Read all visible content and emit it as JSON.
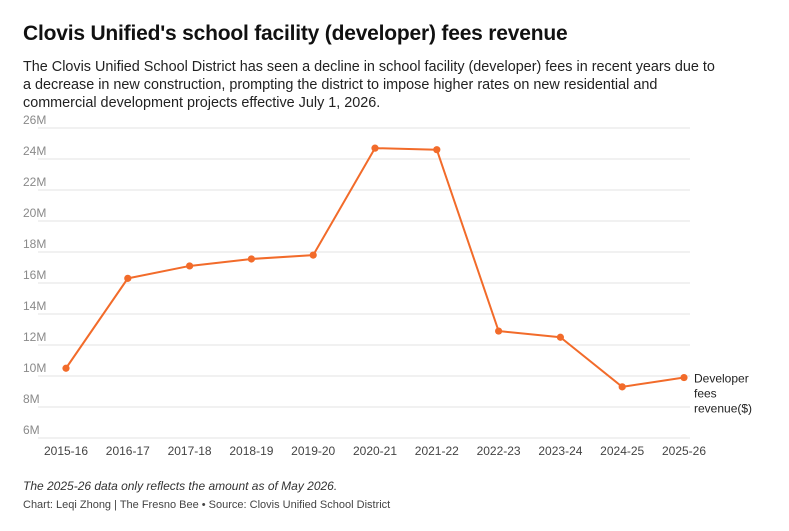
{
  "chart_data": {
    "type": "line",
    "title": "Clovis Unified's school facility (developer) fees revenue",
    "subtitle": "The Clovis Unified School District has seen a decline in school facility (developer) fees in recent years due to a decrease in new construction, prompting the district to impose higher rates on new residential and commercial development projects effective July 1, 2026.",
    "categories": [
      "2015-16",
      "2016-17",
      "2017-18",
      "2018-19",
      "2019-20",
      "2020-21",
      "2021-22",
      "2022-23",
      "2023-24",
      "2024-25",
      "2025-26"
    ],
    "series": [
      {
        "name": "Developer fees revenue($)",
        "values": [
          10500000,
          16300000,
          17100000,
          17550000,
          17800000,
          24700000,
          24600000,
          12900000,
          12500000,
          9300000,
          9900000
        ]
      }
    ],
    "yticks": [
      {
        "value": 6000000,
        "label": "6M"
      },
      {
        "value": 8000000,
        "label": "8M"
      },
      {
        "value": 10000000,
        "label": "10M"
      },
      {
        "value": 12000000,
        "label": "12M"
      },
      {
        "value": 14000000,
        "label": "14M"
      },
      {
        "value": 16000000,
        "label": "16M"
      },
      {
        "value": 18000000,
        "label": "18M"
      },
      {
        "value": 20000000,
        "label": "20M"
      },
      {
        "value": 22000000,
        "label": "22M"
      },
      {
        "value": 24000000,
        "label": "24M"
      },
      {
        "value": 26000000,
        "label": "26M"
      }
    ],
    "ylim": [
      6000000,
      26000000
    ],
    "grid": true,
    "legend": "end-of-line label",
    "line_color": "#f26b2a",
    "footnote": "The 2025-26 data only reflects the amount as of May 2026.",
    "credit": "Chart: Leqi Zhong | The Fresno Bee • Source: Clovis Unified School District"
  }
}
